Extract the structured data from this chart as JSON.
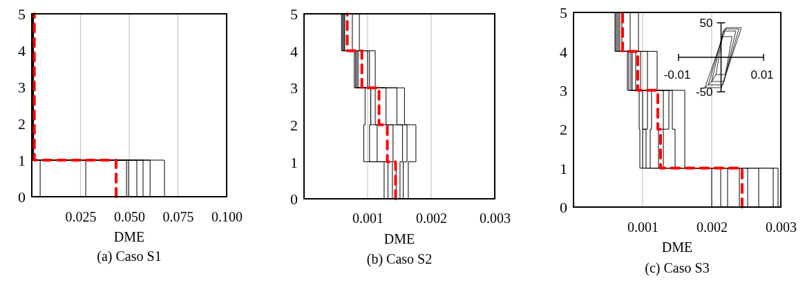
{
  "chart_data": [
    {
      "type": "line",
      "title": "(a) Caso S1",
      "xlabel": "DME",
      "xlim": [
        0,
        0.1
      ],
      "xticks": [
        0.025,
        {
          "value": 0.05,
          "label": "0.050"
        },
        0.075,
        {
          "value": 0.1,
          "label": "0.100"
        }
      ],
      "ylim": [
        0,
        5
      ],
      "yticks": [
        0,
        1,
        2,
        3,
        4,
        5
      ],
      "grid": "x",
      "series": [
        {
          "color": "#000000",
          "x": [
            0.0043,
            0.0043,
            0.0002,
            0.0002,
            0.0003,
            0.0003,
            0.0002,
            0.0002,
            0.0003,
            0.0003
          ],
          "values": [
            0,
            1,
            1,
            2,
            2,
            3,
            3,
            4,
            4,
            5
          ]
        },
        {
          "color": "#000000",
          "x": [
            0.0277,
            0.0277,
            0.0004,
            0.0004,
            0.0005,
            0.0005,
            0.0004,
            0.0004,
            0.0002,
            0.0002
          ],
          "values": [
            0,
            1,
            1,
            2,
            2,
            3,
            3,
            4,
            4,
            5
          ]
        },
        {
          "color": "#000000",
          "x": [
            0.0486,
            0.0486,
            0.0006,
            0.0006,
            0.0004,
            0.0004,
            0.0006,
            0.0006,
            0.0005,
            0.0005
          ],
          "values": [
            0,
            1,
            1,
            2,
            2,
            3,
            3,
            4,
            4,
            5
          ]
        },
        {
          "color": "#000000",
          "x": [
            0.0496,
            0.0496,
            0.0008,
            0.0008,
            0.0007,
            0.0007,
            0.0005,
            0.0005,
            0.0004,
            0.0004
          ],
          "values": [
            0,
            1,
            1,
            2,
            2,
            3,
            3,
            4,
            4,
            5
          ]
        },
        {
          "color": "#000000",
          "x": [
            0.0539,
            0.0539,
            0.0003,
            0.0003,
            0.0008,
            0.0008,
            0.0008,
            0.0008,
            0.0006,
            0.0006
          ],
          "values": [
            0,
            1,
            1,
            2,
            2,
            3,
            3,
            4,
            4,
            5
          ]
        },
        {
          "color": "#000000",
          "x": [
            0.0571,
            0.0571,
            0.0005,
            0.0005,
            0.0002,
            0.0002,
            0.0003,
            0.0003,
            0.0007,
            0.0007
          ],
          "values": [
            0,
            1,
            1,
            2,
            2,
            3,
            3,
            4,
            4,
            5
          ]
        },
        {
          "color": "#000000",
          "x": [
            0.0607,
            0.0607,
            0.0007,
            0.0007,
            0.0006,
            0.0006,
            0.0007,
            0.0007,
            0.0008,
            0.0008
          ],
          "values": [
            0,
            1,
            1,
            2,
            2,
            3,
            3,
            4,
            4,
            5
          ]
        },
        {
          "color": "#000000",
          "x": [
            0.0681,
            0.0681,
            0.0009,
            0.0009,
            0.0009,
            0.0009,
            0.0009,
            0.0009,
            0.0009,
            0.0009
          ],
          "values": [
            0,
            1,
            1,
            2,
            2,
            3,
            3,
            4,
            4,
            5
          ]
        },
        {
          "color": "#ff0000",
          "line_style": "dashed",
          "x": [
            0.0433,
            0.0433,
            0.0013,
            0.0013,
            0.0013,
            0.0013,
            0.0013,
            0.0013,
            0.0013,
            0.0013
          ],
          "values": [
            0,
            1,
            1,
            2,
            2,
            3,
            3,
            4,
            4,
            5
          ]
        }
      ]
    },
    {
      "type": "line",
      "title": "(b) Caso S2",
      "xlabel": "DME",
      "xlim": [
        0,
        0.003
      ],
      "xticks": [
        0.001,
        0.002,
        0.003
      ],
      "ylim": [
        0,
        5
      ],
      "yticks": [
        0,
        1,
        2,
        3,
        4,
        5
      ],
      "grid": "x",
      "series": [
        {
          "color": "#000000",
          "x": [
            0.00126,
            0.00126,
            0.00094,
            0.00094,
            0.00096,
            0.00096,
            0.00079,
            0.00079,
            0.00059,
            0.00059
          ],
          "values": [
            0,
            1,
            1,
            2,
            2,
            3,
            3,
            4,
            4,
            5
          ]
        },
        {
          "color": "#000000",
          "x": [
            0.00132,
            0.00132,
            0.00103,
            0.00103,
            0.00105,
            0.00105,
            0.00083,
            0.00083,
            0.00062,
            0.00062
          ],
          "values": [
            0,
            1,
            1,
            2,
            2,
            3,
            3,
            4,
            4,
            5
          ]
        },
        {
          "color": "#000000",
          "x": [
            0.00139,
            0.00139,
            0.00115,
            0.00115,
            0.00112,
            0.00112,
            0.001,
            0.001,
            0.00064,
            0.00064
          ],
          "values": [
            0,
            1,
            1,
            2,
            2,
            3,
            3,
            4,
            4,
            5
          ]
        },
        {
          "color": "#000000",
          "x": [
            0.00145,
            0.00145,
            0.0014,
            0.0014,
            0.00129,
            0.00129,
            0.00103,
            0.00103,
            0.00076,
            0.00076
          ],
          "values": [
            0,
            1,
            1,
            2,
            2,
            3,
            3,
            4,
            4,
            5
          ]
        },
        {
          "color": "#000000",
          "x": [
            0.00151,
            0.00151,
            0.00155,
            0.00155,
            0.00146,
            0.00146,
            0.00112,
            0.00112,
            0.00087,
            0.00087
          ],
          "values": [
            0,
            1,
            1,
            2,
            2,
            3,
            3,
            4,
            4,
            5
          ]
        },
        {
          "color": "#000000",
          "x": [
            0.00156,
            0.00156,
            0.00162,
            0.00162,
            0.00158,
            0.00158,
            0.00081,
            0.00081,
            0.0006,
            0.0006
          ],
          "values": [
            0,
            1,
            1,
            2,
            2,
            3,
            3,
            4,
            4,
            5
          ]
        },
        {
          "color": "#000000",
          "x": [
            0.00164,
            0.00164,
            0.00176,
            0.00176,
            0.00105,
            0.00105,
            0.00085,
            0.00085,
            0.00063,
            0.00063
          ],
          "values": [
            0,
            1,
            1,
            2,
            2,
            3,
            3,
            4,
            4,
            5
          ]
        },
        {
          "color": "#ff0000",
          "line_style": "dashed",
          "x": [
            0.00144,
            0.00144,
            0.00131,
            0.00131,
            0.00118,
            0.00118,
            0.00091,
            0.00091,
            0.00068,
            0.00068
          ],
          "values": [
            0,
            1,
            1,
            2,
            2,
            3,
            3,
            4,
            4,
            5
          ]
        }
      ]
    },
    {
      "type": "line",
      "title": "(c) Caso S3",
      "xlabel": "DME",
      "xlim": [
        0,
        0.003
      ],
      "xticks": [
        0.001,
        0.002,
        0.003
      ],
      "ylim": [
        0,
        5
      ],
      "yticks": [
        0,
        1,
        2,
        3,
        4,
        5
      ],
      "grid": "x",
      "series": [
        {
          "color": "#000000",
          "x": [
            0.002,
            0.002,
            0.00096,
            0.00096,
            0.00095,
            0.00095,
            0.00078,
            0.00078,
            0.0006,
            0.0006
          ],
          "values": [
            0,
            1,
            1,
            2,
            2,
            3,
            3,
            4,
            4,
            5
          ]
        },
        {
          "color": "#000000",
          "x": [
            0.00213,
            0.00213,
            0.001,
            0.001,
            0.00107,
            0.00107,
            0.00083,
            0.00083,
            0.00063,
            0.00063
          ],
          "values": [
            0,
            1,
            1,
            2,
            2,
            3,
            3,
            4,
            4,
            5
          ]
        },
        {
          "color": "#000000",
          "x": [
            0.00223,
            0.00223,
            0.00111,
            0.00111,
            0.00113,
            0.00113,
            0.00097,
            0.00097,
            0.00067,
            0.00067
          ],
          "values": [
            0,
            1,
            1,
            2,
            2,
            3,
            3,
            4,
            4,
            5
          ]
        },
        {
          "color": "#000000",
          "x": [
            0.0024,
            0.0024,
            0.00123,
            0.00123,
            0.0013,
            0.0013,
            0.00107,
            0.00107,
            0.00082,
            0.00082
          ],
          "values": [
            0,
            1,
            1,
            2,
            2,
            3,
            3,
            4,
            4,
            5
          ]
        },
        {
          "color": "#000000",
          "x": [
            0.00252,
            0.00252,
            0.0013,
            0.0013,
            0.00138,
            0.00138,
            0.00121,
            0.00121,
            0.00094,
            0.00094
          ],
          "values": [
            0,
            1,
            1,
            2,
            2,
            3,
            3,
            4,
            4,
            5
          ]
        },
        {
          "color": "#000000",
          "x": [
            0.00268,
            0.00268,
            0.00147,
            0.00147,
            0.00143,
            0.00143,
            0.0008,
            0.0008,
            0.00061,
            0.00061
          ],
          "values": [
            0,
            1,
            1,
            2,
            2,
            3,
            3,
            4,
            4,
            5
          ]
        },
        {
          "color": "#000000",
          "x": [
            0.00289,
            0.00289,
            0.00161,
            0.00161,
            0.00161,
            0.00161,
            0.00085,
            0.00085,
            0.00065,
            0.00065
          ],
          "values": [
            0,
            1,
            1,
            2,
            2,
            3,
            3,
            4,
            4,
            5
          ]
        },
        {
          "color": "#000000",
          "x": [
            0.00296,
            0.00296,
            0.00105,
            0.00105,
            0.001,
            0.001,
            0.0009,
            0.0009,
            0.0007,
            0.0007
          ],
          "values": [
            0,
            1,
            1,
            2,
            2,
            3,
            3,
            4,
            4,
            5
          ]
        },
        {
          "color": "#ff0000",
          "line_style": "dashed",
          "x": [
            0.00244,
            0.00244,
            0.00126,
            0.00126,
            0.00122,
            0.00122,
            0.00093,
            0.00093,
            0.00071,
            0.00071
          ],
          "values": [
            0,
            1,
            1,
            2,
            2,
            3,
            3,
            4,
            4,
            5
          ]
        }
      ]
    },
    {
      "type": "line",
      "xlim": [
        -0.01,
        0.01
      ],
      "xticks": [
        -0.01,
        0.01
      ],
      "ylim": [
        -50,
        50
      ],
      "yticks": [
        -50,
        50
      ],
      "series": [
        {
          "color": "#000000",
          "x": [
            -0.0038,
            0.0001,
            0.0048,
            0.0012,
            -0.0038,
            -0.003,
            0.0004,
            0.0042,
            0.0008,
            -0.003,
            -0.0022,
            0.0007,
            0.0035,
            0.0005,
            -0.0022,
            -0.0012,
            0.001,
            0.0026,
            0.0003,
            -0.0012
          ],
          "values": [
            -44,
            -44,
            43,
            43,
            -44,
            -40,
            -40,
            41,
            41,
            -40,
            -35,
            -35,
            38,
            38,
            -35,
            -25,
            -25,
            30,
            30,
            -25
          ]
        }
      ]
    }
  ]
}
